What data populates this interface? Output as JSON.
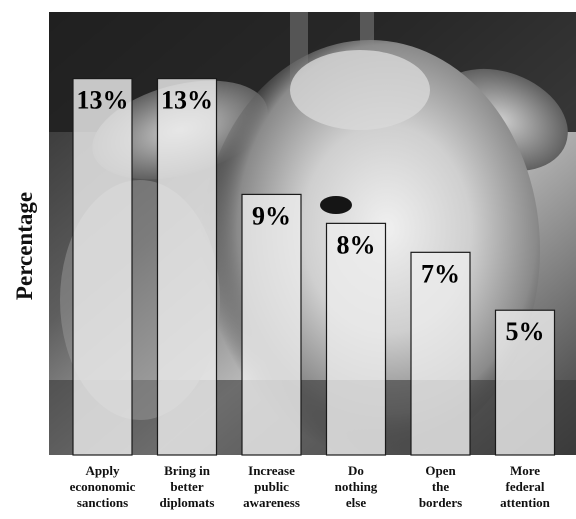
{
  "chart_data": {
    "type": "bar",
    "title": "",
    "xlabel": "",
    "ylabel": "Percentage",
    "ylim": [
      0,
      15.3
    ],
    "grid": false,
    "categories": [
      [
        "Apply",
        "econonomic",
        "sanctions"
      ],
      [
        "Bring in",
        "better",
        "diplomats"
      ],
      [
        "Increase",
        "public",
        "awareness"
      ],
      [
        "Do",
        "nothing",
        "else"
      ],
      [
        "Open",
        "the",
        "borders"
      ],
      [
        "More",
        "federal",
        "attention"
      ]
    ],
    "values": [
      13,
      13,
      9,
      8,
      7,
      5
    ],
    "value_labels": [
      "13%",
      "13%",
      "9%",
      "8%",
      "7%",
      "5%"
    ]
  },
  "colors": {
    "background": "#ffffff",
    "photo_dark": "#1d1d1d",
    "photo_mid": "#7a7a7a",
    "photo_light": "#d9d9d9",
    "bar_fill": "#ebebeb",
    "bar_stroke": "#1a1a1a",
    "text": "#111111"
  },
  "background_image": {
    "icon": "calf-photo",
    "description_visible": false
  }
}
